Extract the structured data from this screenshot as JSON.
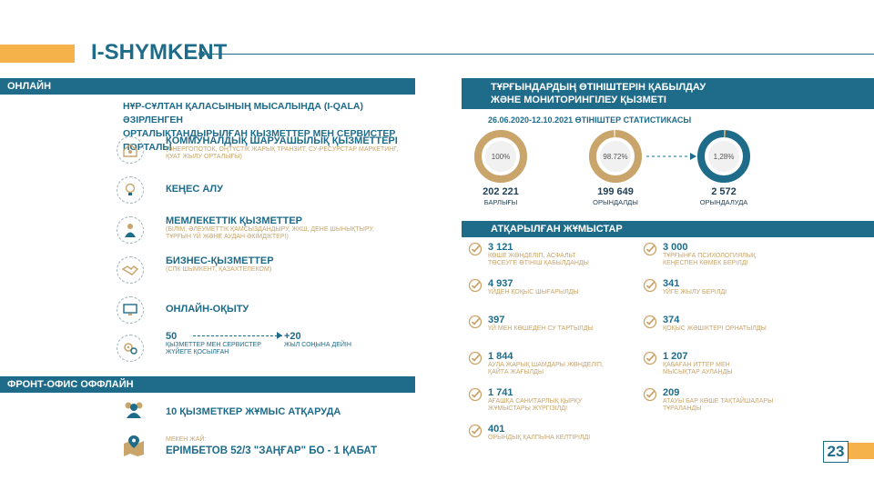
{
  "header": {
    "brand": "I-SHYMKENT"
  },
  "online": {
    "bar_label": "ОНЛАЙН",
    "intro_line1": "НҰР-СҰЛТАН ҚАЛАСЫНЫҢ МЫСАЛЫНДА (I-QALA) ӘЗІРЛЕНГЕН",
    "intro_line2": "ОРТАЛЫҚТАНДЫРЫЛҒАН ҚЫЗМЕТТЕР МЕН СЕРВИСТЕР ПОРТАЛЫ",
    "services": [
      {
        "title": "КОММУНАЛДЫҚ ШАРУАШЫЛЫҚ ҚЫЗМЕТТЕРІ",
        "sub1": "(ЭНЕРГОПОТОК, ОҢТҮСТІК ЖАРЫҚ ТРАНЗИТ, СУ-РЕСУРСТАР МАРКЕТИНГ,",
        "sub2": "ҚУАТ ЖЫЛУ ОРТАЛЫҒЫ)",
        "icon": "home-icon"
      },
      {
        "title": "КЕҢЕС АЛУ",
        "sub1": "",
        "sub2": "",
        "icon": "lightbulb-icon"
      },
      {
        "title": "МЕМЛЕКЕТТІК ҚЫЗМЕТТЕР",
        "sub1": "(БІЛІМ, ӘЛЕУМЕТТІК ҚАМСЫЗДАНДЫРУ, ЖКШ, ДЕНЕ ШЫНЫҚТЫРУ,",
        "sub2": "ТҰРҒЫН ҮЙ ЖӘНЕ АУДАН ӘКІМДІКТЕРІ)",
        "icon": "official-icon"
      },
      {
        "title": "БИЗНЕС-ҚЫЗМЕТТЕР",
        "sub1": "(СПК ШЫМКЕНТ, ҚАЗАХТЕЛЕКОМ)",
        "sub2": "",
        "icon": "handshake-icon"
      },
      {
        "title": "ОНЛАЙН-ОҚЫТУ",
        "sub1": "",
        "sub2": "",
        "icon": "monitor-icon"
      }
    ],
    "growth": {
      "from": "50",
      "from_label1": "ҚЫЗМЕТТЕР МЕН СЕРВИСТЕР",
      "from_label2": "ЖҮЙЕГЕ ҚОСЫЛҒАН",
      "to": "+20",
      "to_label": "ЖЫЛ СОҢЫНА ДЕЙІН",
      "icon": "gears-icon"
    }
  },
  "front_office": {
    "bar_label": "ФРОНТ-ОФИС ОФФЛАЙН",
    "staff_text": "10 ҚЫЗМЕТКЕР ЖҰМЫС АТҚАРУДА",
    "address_label": "МЕКЕН ЖАЙ:",
    "address": "ЕРІМБЕТОВ 52/3 \"ЗАҢҒАР\" БО - 1 ҚАБАТ"
  },
  "appeals": {
    "bar_line1": "ТҰРҒЫНДАРДЫҢ ӨТІНІШТЕРІН ҚАБЫЛДАУ",
    "bar_line2": "ЖӘНЕ МОНИТОРИНГІЛЕУ ҚЫЗМЕТІ",
    "stats_title": "26.06.2020-12.10.2021 ӨТІНІШТЕР СТАТИСТИКАСЫ",
    "donuts": [
      {
        "pct": "100%",
        "value": "202 221",
        "label": "БАРЛЫҒЫ",
        "fraction": 1.0,
        "color": "#c9a56b"
      },
      {
        "pct": "98.72%",
        "value": "199 649",
        "label": "ОРЫНДАЛДЫ",
        "fraction": 0.9872,
        "color": "#c9a56b"
      },
      {
        "pct": "1,28%",
        "value": "2 572",
        "label": "ОРЫНДАЛУДА",
        "fraction": 0.0128,
        "color": "#1e6b8a"
      }
    ]
  },
  "works": {
    "bar_label": "АТҚАРЫЛҒАН ЖҰМЫСТАР",
    "left": [
      {
        "num": "3 121",
        "d1": "КӨШЕ ЖӨНДЕЛІП, АСФАЛЬТ",
        "d2": "ТӨСЕУГЕ ӨТІНІШ ҚАБЫЛДАНДЫ"
      },
      {
        "num": "4 937",
        "d1": "ҮЙДЕН ҚОҚЫС ШЫҒАРЫЛДЫ",
        "d2": ""
      },
      {
        "num": "397",
        "d1": "ҮЙ МЕН КӨШЕДЕН СУ ТАРТЫЛДЫ",
        "d2": ""
      },
      {
        "num": "1 844",
        "d1": "АУЛА ЖАРЫҚ ШАМДАРЫ ЖӨНДЕЛІП,",
        "d2": "ҚАЙТА ЖАҒЫЛДЫ"
      },
      {
        "num": "1 741",
        "d1": "АҒАШҚА САНИТАРЛЫҚ ҚЫРҚУ",
        "d2": "ЖҰМЫСТАРЫ ЖҮРГІЗІЛДІ"
      },
      {
        "num": "401",
        "d1": "ОРЫНДЫҚ ҚАЛПЫНА КЕЛТІРІЛДІ",
        "d2": ""
      }
    ],
    "right": [
      {
        "num": "3 000",
        "d1": "ТҰРҒЫНҒА ПСИХОЛОГИЯЛЫҚ",
        "d2": "КЕҢЕСПЕН КӨМЕК БЕРІЛДІ"
      },
      {
        "num": "341",
        "d1": "ҮЙГЕ ЖЫЛУ БЕРІЛДІ",
        "d2": ""
      },
      {
        "num": "374",
        "d1": "ҚОҚЫС ЖӘШІКТЕРІ ОРНАТЫЛДЫ",
        "d2": ""
      },
      {
        "num": "1 207",
        "d1": "ҚАБАҒАН ИТТЕР МЕН",
        "d2": "МЫСЫҚТАР АУЛАНДЫ"
      },
      {
        "num": "209",
        "d1": "АТАУЫ БАР КӨШЕ ТАҚТАЙШАЛАРЫ",
        "d2": "ТҰРАЛАНДЫ"
      }
    ]
  },
  "page_number": "23",
  "colors": {
    "teal": "#1e6b8a",
    "gold": "#c9a56b",
    "orange": "#f6b24a"
  }
}
